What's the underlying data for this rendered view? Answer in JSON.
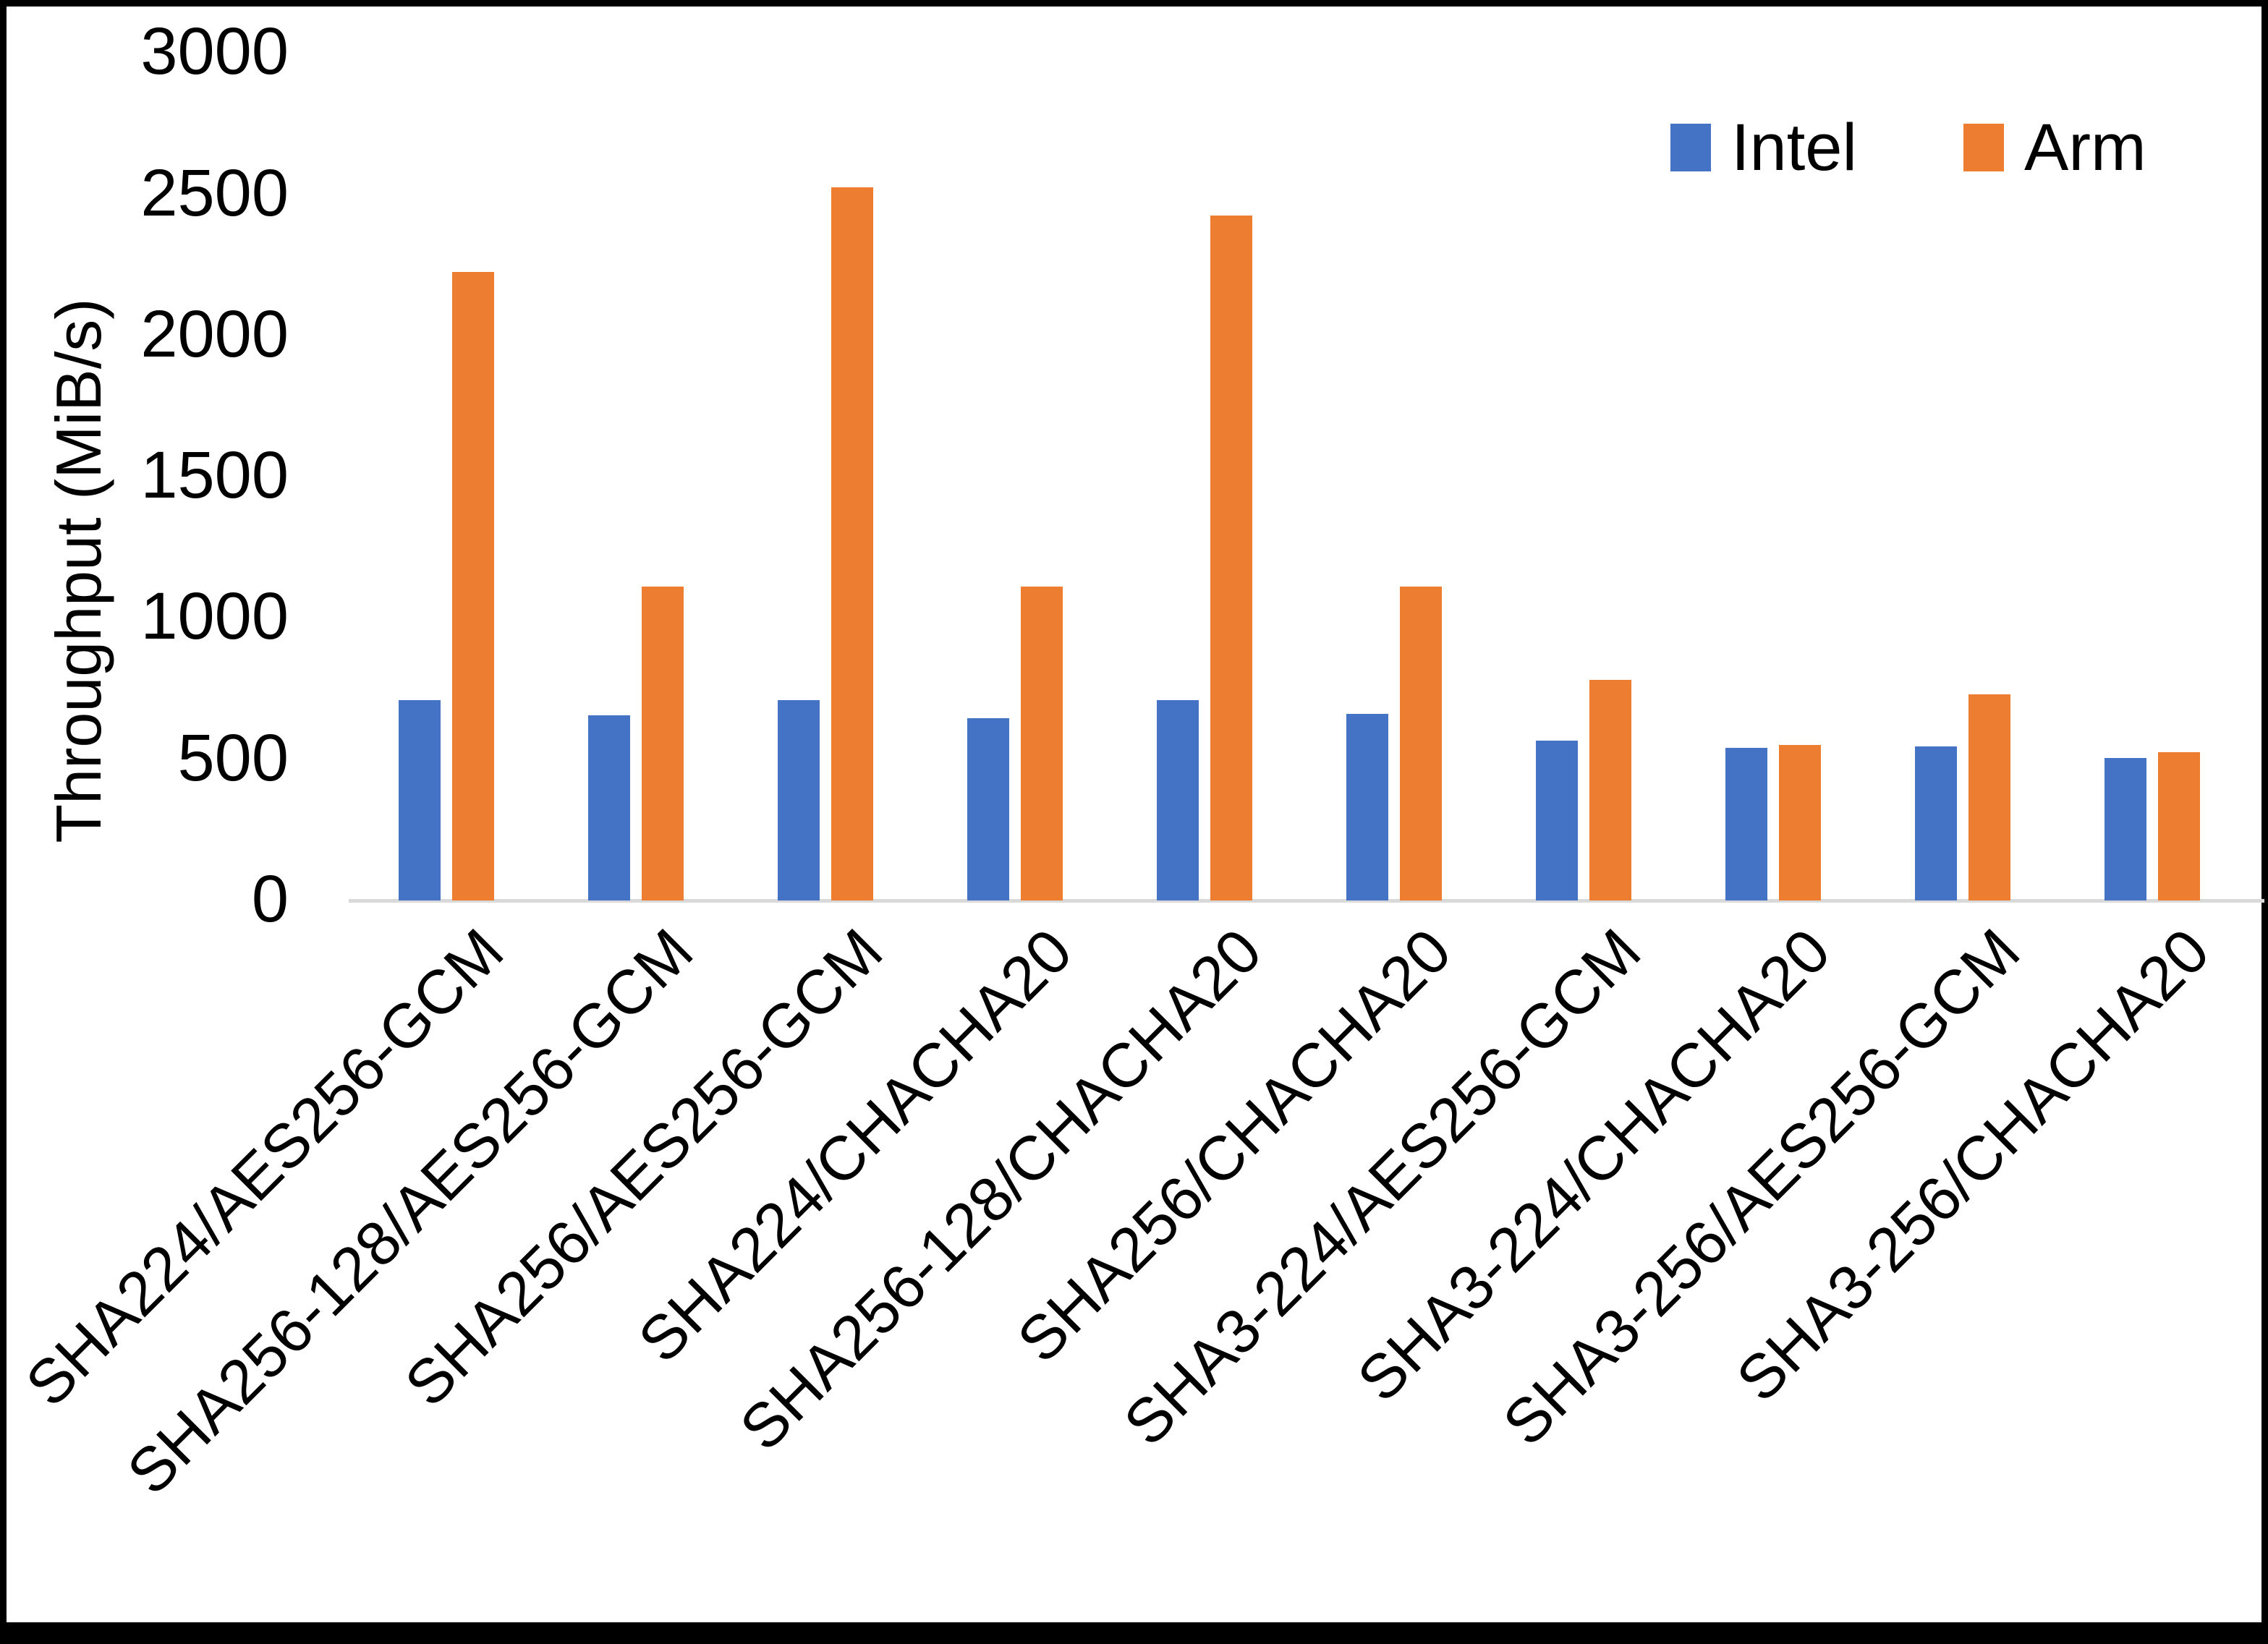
{
  "chart_data": {
    "type": "bar",
    "title": "",
    "xlabel": "",
    "ylabel": "Throughput (MiB/s)",
    "ylim": [
      0,
      3000
    ],
    "yticks": [
      0,
      500,
      1000,
      1500,
      2000,
      2500,
      3000
    ],
    "grid": false,
    "legend_position": "top-right",
    "categories": [
      "SHA224/AES256-GCM",
      "SHA256-128/AES256-GCM",
      "SHA256/AES256-GCM",
      "SHA224/CHACHA20",
      "SHA256-128/CHACHA20",
      "SHA256/CHACHA20",
      "SHA3-224/AES256-GCM",
      "SHA3-224/CHACHA20",
      "SHA3-256/AES256-GCM",
      "SHA3-256/CHACHA20"
    ],
    "series": [
      {
        "name": "Intel",
        "color": "#4472C4",
        "values": [
          710,
          655,
          710,
          645,
          710,
          660,
          565,
          540,
          545,
          505
        ]
      },
      {
        "name": "Arm",
        "color": "#ED7D31",
        "values": [
          2225,
          1110,
          2525,
          1110,
          2425,
          1110,
          780,
          550,
          730,
          525
        ]
      }
    ]
  },
  "frame": {
    "background": "#FFFFFF",
    "border_color": "#000000",
    "axis_line_color": "#D9D9D9",
    "text_color": "#000000"
  }
}
